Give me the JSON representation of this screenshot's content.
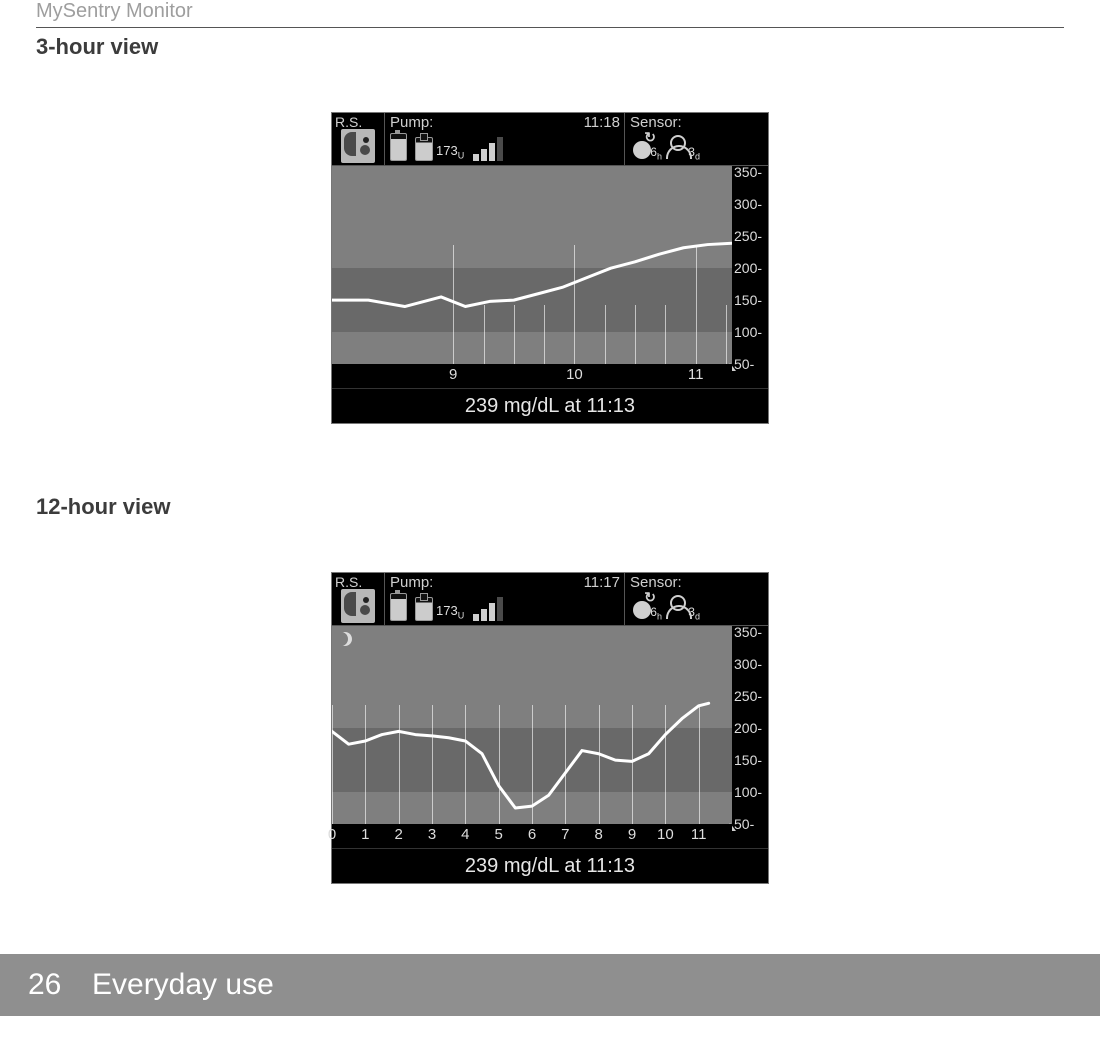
{
  "doc_header": "MySentry Monitor",
  "sections": {
    "s1": "3-hour view",
    "s2": "12-hour view"
  },
  "footer": {
    "page": "26",
    "title": "Everyday use"
  },
  "status_common": {
    "rs_label": "R.S.",
    "pump_label": "Pump:",
    "sensor_label": "Sensor:",
    "reservoir_value": "173",
    "reservoir_unit": "U",
    "calibration_value": "6",
    "calibration_unit": "h",
    "sensorlife_value": "3",
    "sensorlife_unit": "d"
  },
  "view3h": {
    "clock": "11:18",
    "readout": "239 mg/dL at 11:13",
    "chart": {
      "type": "line",
      "y": {
        "lim": [
          50,
          360
        ],
        "ticks": [
          50,
          100,
          150,
          200,
          250,
          300,
          350
        ]
      },
      "x": {
        "lim": [
          8,
          11.3
        ],
        "ticks": [
          9,
          10,
          11
        ],
        "labels": [
          "9",
          "10",
          "11"
        ]
      },
      "target_band": {
        "low": 100,
        "high": 200,
        "color": "#696969"
      },
      "background_color": "#7f7f7f",
      "line_color": "#ffffff",
      "line_width": 3,
      "points": [
        [
          8.0,
          150
        ],
        [
          8.3,
          150
        ],
        [
          8.6,
          140
        ],
        [
          8.9,
          155
        ],
        [
          9.1,
          140
        ],
        [
          9.3,
          148
        ],
        [
          9.5,
          150
        ],
        [
          9.7,
          160
        ],
        [
          9.9,
          170
        ],
        [
          10.1,
          185
        ],
        [
          10.3,
          200
        ],
        [
          10.5,
          210
        ],
        [
          10.7,
          222
        ],
        [
          10.9,
          232
        ],
        [
          11.1,
          237
        ],
        [
          11.3,
          239
        ]
      ],
      "subgrid_per_major": 4
    }
  },
  "view12h": {
    "clock": "11:17",
    "readout": "239 mg/dL at 11:13",
    "chart": {
      "type": "line",
      "y": {
        "lim": [
          50,
          360
        ],
        "ticks": [
          50,
          100,
          150,
          200,
          250,
          300,
          350
        ]
      },
      "x": {
        "lim": [
          0,
          12
        ],
        "ticks": [
          0,
          1,
          2,
          3,
          4,
          5,
          6,
          7,
          8,
          9,
          10,
          11
        ],
        "labels": [
          "0",
          "1",
          "2",
          "3",
          "4",
          "5",
          "6",
          "7",
          "8",
          "9",
          "10",
          "11"
        ]
      },
      "target_band": {
        "low": 100,
        "high": 200,
        "color": "#696969"
      },
      "background_color": "#7f7f7f",
      "line_color": "#ffffff",
      "line_width": 3,
      "night_end": 6,
      "points": [
        [
          0,
          195
        ],
        [
          0.5,
          175
        ],
        [
          1,
          180
        ],
        [
          1.5,
          190
        ],
        [
          2,
          195
        ],
        [
          2.5,
          190
        ],
        [
          3,
          188
        ],
        [
          3.5,
          185
        ],
        [
          4,
          180
        ],
        [
          4.5,
          160
        ],
        [
          5,
          110
        ],
        [
          5.5,
          75
        ],
        [
          6,
          78
        ],
        [
          6.5,
          95
        ],
        [
          7,
          130
        ],
        [
          7.5,
          165
        ],
        [
          8,
          160
        ],
        [
          8.5,
          150
        ],
        [
          9,
          148
        ],
        [
          9.5,
          160
        ],
        [
          10,
          190
        ],
        [
          10.5,
          215
        ],
        [
          11,
          235
        ],
        [
          11.3,
          239
        ]
      ]
    }
  }
}
